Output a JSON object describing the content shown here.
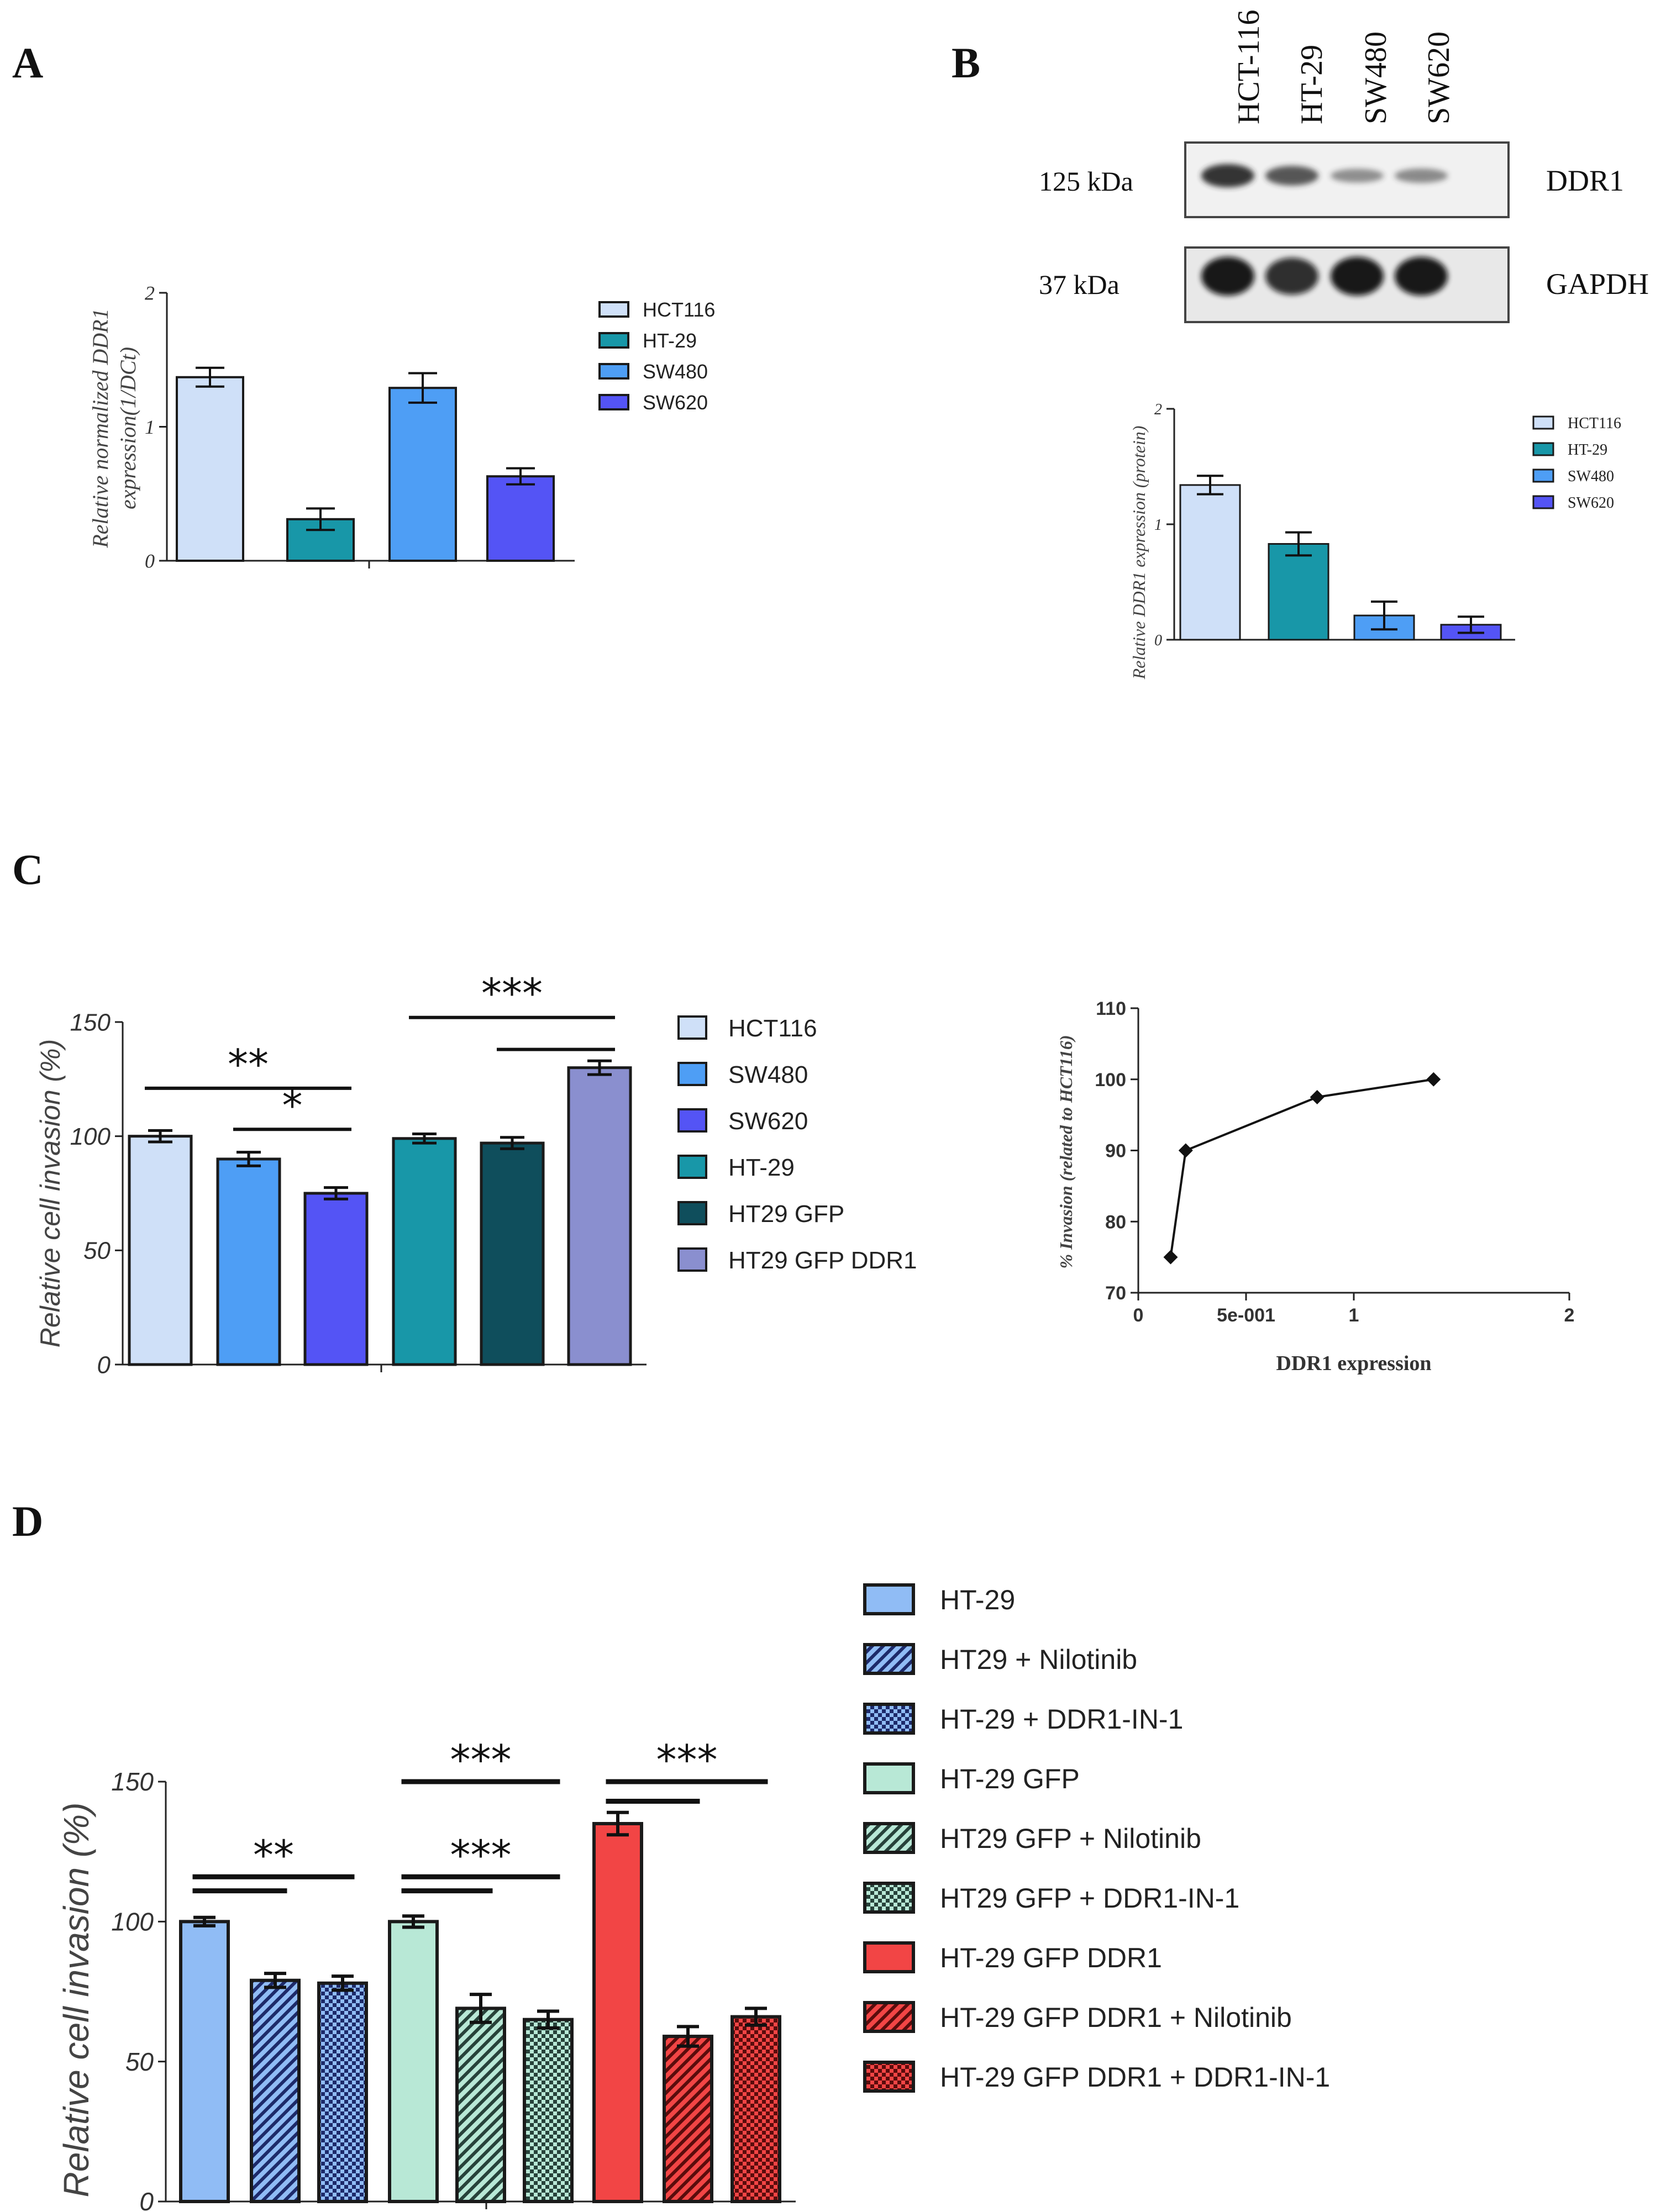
{
  "panels": {
    "A": "A",
    "B": "B",
    "C": "C",
    "D": "D"
  },
  "western_blot": {
    "lanes": [
      "HCT-116",
      "HT-29",
      "SW480",
      "SW620"
    ],
    "band_rows": [
      {
        "mw": "125 kDa",
        "protein": "DDR1",
        "intensity": [
          1.0,
          0.75,
          0.35,
          0.38
        ]
      },
      {
        "mw": "37 kDa",
        "protein": "GAPDH",
        "intensity": [
          1.0,
          0.85,
          1.0,
          1.0
        ]
      }
    ]
  },
  "colors": {
    "HCT116": "#cfe0f8",
    "HT-29": "#1897a8",
    "SW480": "#4e9ef5",
    "SW620": "#5454f5",
    "HT29 GFP": "#0f4e5c",
    "HT29 GFP DDR1": "#8a8fcf",
    "D_blue": "#90bcf5",
    "D_mint": "#b8e8d6",
    "D_red": "#f24545"
  },
  "chart_data": [
    {
      "id": "A",
      "type": "bar",
      "categories": [
        "HCT116",
        "HT-29",
        "SW480",
        "SW620"
      ],
      "values": [
        1.37,
        0.31,
        1.29,
        0.63
      ],
      "errors": [
        0.07,
        0.08,
        0.11,
        0.06
      ],
      "ylabel_line1": "Relative normalized DDR1",
      "ylabel_line2": "expression(1/DCt)",
      "ylim": [
        0,
        2
      ],
      "yticks": [
        "0",
        "1",
        "2"
      ],
      "legend": [
        "HCT116",
        "HT-29",
        "SW480",
        "SW620"
      ]
    },
    {
      "id": "B",
      "type": "bar",
      "categories": [
        "HCT116",
        "HT-29",
        "SW480",
        "SW620"
      ],
      "values": [
        1.34,
        0.83,
        0.21,
        0.13
      ],
      "errors": [
        0.08,
        0.1,
        0.12,
        0.07
      ],
      "ylabel": "Relative DDR1 expression (protein)",
      "ylim": [
        0,
        2
      ],
      "yticks": [
        "0",
        "1",
        "2"
      ],
      "legend": [
        "HCT116",
        "HT-29",
        "SW480",
        "SW620"
      ]
    },
    {
      "id": "C1",
      "type": "bar",
      "categories": [
        "HCT116",
        "SW480",
        "SW620",
        "HT-29",
        "HT29 GFP",
        "HT29 GFP DDR1"
      ],
      "values": [
        100,
        90,
        75,
        99,
        97,
        130
      ],
      "errors": [
        2.5,
        3,
        2.5,
        2,
        2.5,
        3
      ],
      "ylabel": "Relative cell invasion (%)",
      "ylim": [
        0,
        150
      ],
      "yticks": [
        "0",
        "50",
        "100",
        "150"
      ],
      "legend": [
        "HCT116",
        "SW480",
        "SW620",
        "HT-29",
        "HT29 GFP",
        "HT29 GFP DDR1"
      ],
      "annotations": [
        {
          "label": "**",
          "from": 0,
          "to": 2,
          "y": 121
        },
        {
          "label": "*",
          "from": 1,
          "to": 2,
          "y": 103
        },
        {
          "label": "***",
          "from": 3,
          "to": 5,
          "y": 152
        },
        {
          "label": "",
          "from": 4,
          "to": 5,
          "y": 138
        }
      ]
    },
    {
      "id": "C2",
      "type": "line",
      "x": [
        0.15,
        0.22,
        0.83,
        1.37
      ],
      "y": [
        75,
        90,
        97.5,
        100
      ],
      "xlabel": "DDR1 expression",
      "ylabel": "% Invasion (related to HCT116)",
      "xlim": [
        0,
        2
      ],
      "ylim": [
        70,
        110
      ],
      "xticks": [
        {
          "v": 0,
          "t": "0"
        },
        {
          "v": 0.5,
          "t": "5e-001"
        },
        {
          "v": 1,
          "t": "1"
        },
        {
          "v": 1.5,
          "t": "2"
        }
      ],
      "yticks": [
        "70",
        "80",
        "90",
        "100",
        "110"
      ]
    },
    {
      "id": "D",
      "type": "bar",
      "categories": [
        "HT-29",
        "HT29 + Nilotinib",
        "HT-29 + DDR1-IN-1",
        "HT-29 GFP",
        "HT29 GFP + Nilotinib",
        "HT29 GFP + DDR1-IN-1",
        "HT-29 GFP DDR1",
        "HT-29 GFP DDR1 + Nilotinib",
        "HT-29 GFP DDR1 + DDR1-IN-1"
      ],
      "values": [
        100,
        79,
        78,
        100,
        69,
        65,
        135,
        59,
        66
      ],
      "errors": [
        1.5,
        2.5,
        2.5,
        2,
        5,
        3,
        4,
        3.5,
        3
      ],
      "ylabel": "Relative cell invasion (%)",
      "ylim": [
        0,
        150
      ],
      "yticks": [
        "0",
        "50",
        "100",
        "150"
      ],
      "legend": [
        "HT-29",
        "HT29 + Nilotinib",
        "HT-29 + DDR1-IN-1",
        "HT-29 GFP",
        "HT29 GFP + Nilotinib",
        "HT29 GFP + DDR1-IN-1",
        "HT-29 GFP DDR1",
        "HT-29 GFP DDR1 + Nilotinib",
        "HT-29 GFP DDR1 + DDR1-IN-1"
      ],
      "annotations": [
        {
          "label": "**",
          "from": 0,
          "to": 2,
          "y": 116
        },
        {
          "label": "",
          "from": 0,
          "to": 1,
          "y": 111
        },
        {
          "label": "***",
          "from": 3,
          "to": 5,
          "y": 116
        },
        {
          "label": "",
          "from": 3,
          "to": 4,
          "y": 111
        },
        {
          "label": "***",
          "from": 3,
          "to": 5,
          "y": 150
        },
        {
          "label": "***",
          "from": 6,
          "to": 8,
          "y": 150
        },
        {
          "label": "",
          "from": 6,
          "to": 7,
          "y": 143
        }
      ]
    }
  ]
}
